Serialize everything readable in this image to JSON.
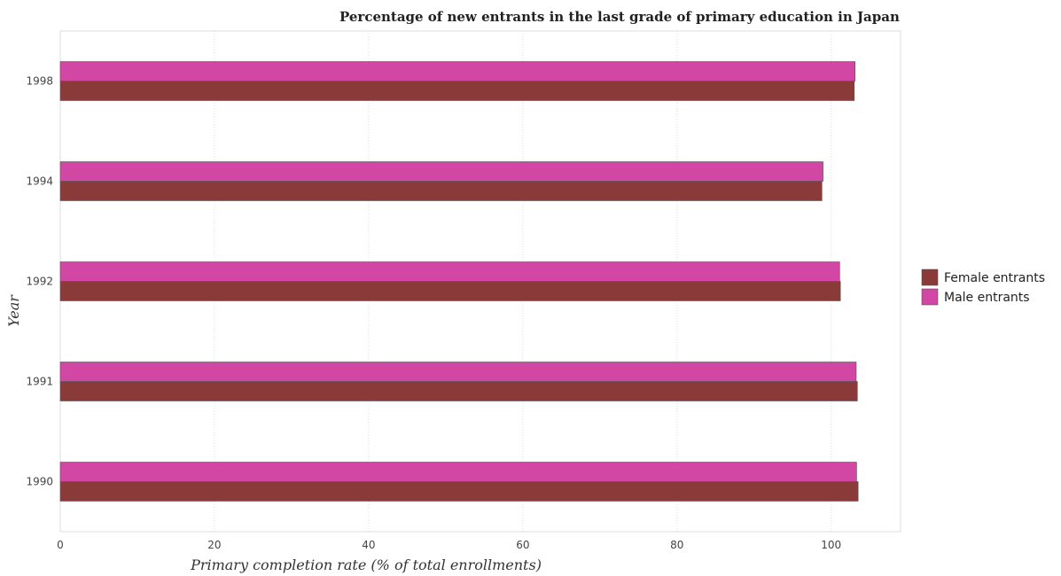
{
  "chart_data": {
    "type": "bar",
    "orientation": "horizontal",
    "title": "Percentage of new entrants in the last grade of primary education in Japan",
    "xlabel": "Primary completion rate (% of total enrollments)",
    "ylabel": "Year",
    "categories": [
      "1990",
      "1991",
      "1992",
      "1994",
      "1998"
    ],
    "series": [
      {
        "name": "Female entrants",
        "color": "#8b3a3a",
        "values": [
          103.5,
          103.4,
          101.2,
          98.8,
          103.0
        ]
      },
      {
        "name": "Male entrants",
        "color": "#d147a3",
        "values": [
          103.3,
          103.25,
          101.1,
          98.95,
          103.1
        ]
      }
    ],
    "xlim": [
      0,
      109
    ],
    "xticks": [
      0,
      20,
      40,
      60,
      80,
      100
    ],
    "grid": true,
    "legend_position": "right"
  }
}
